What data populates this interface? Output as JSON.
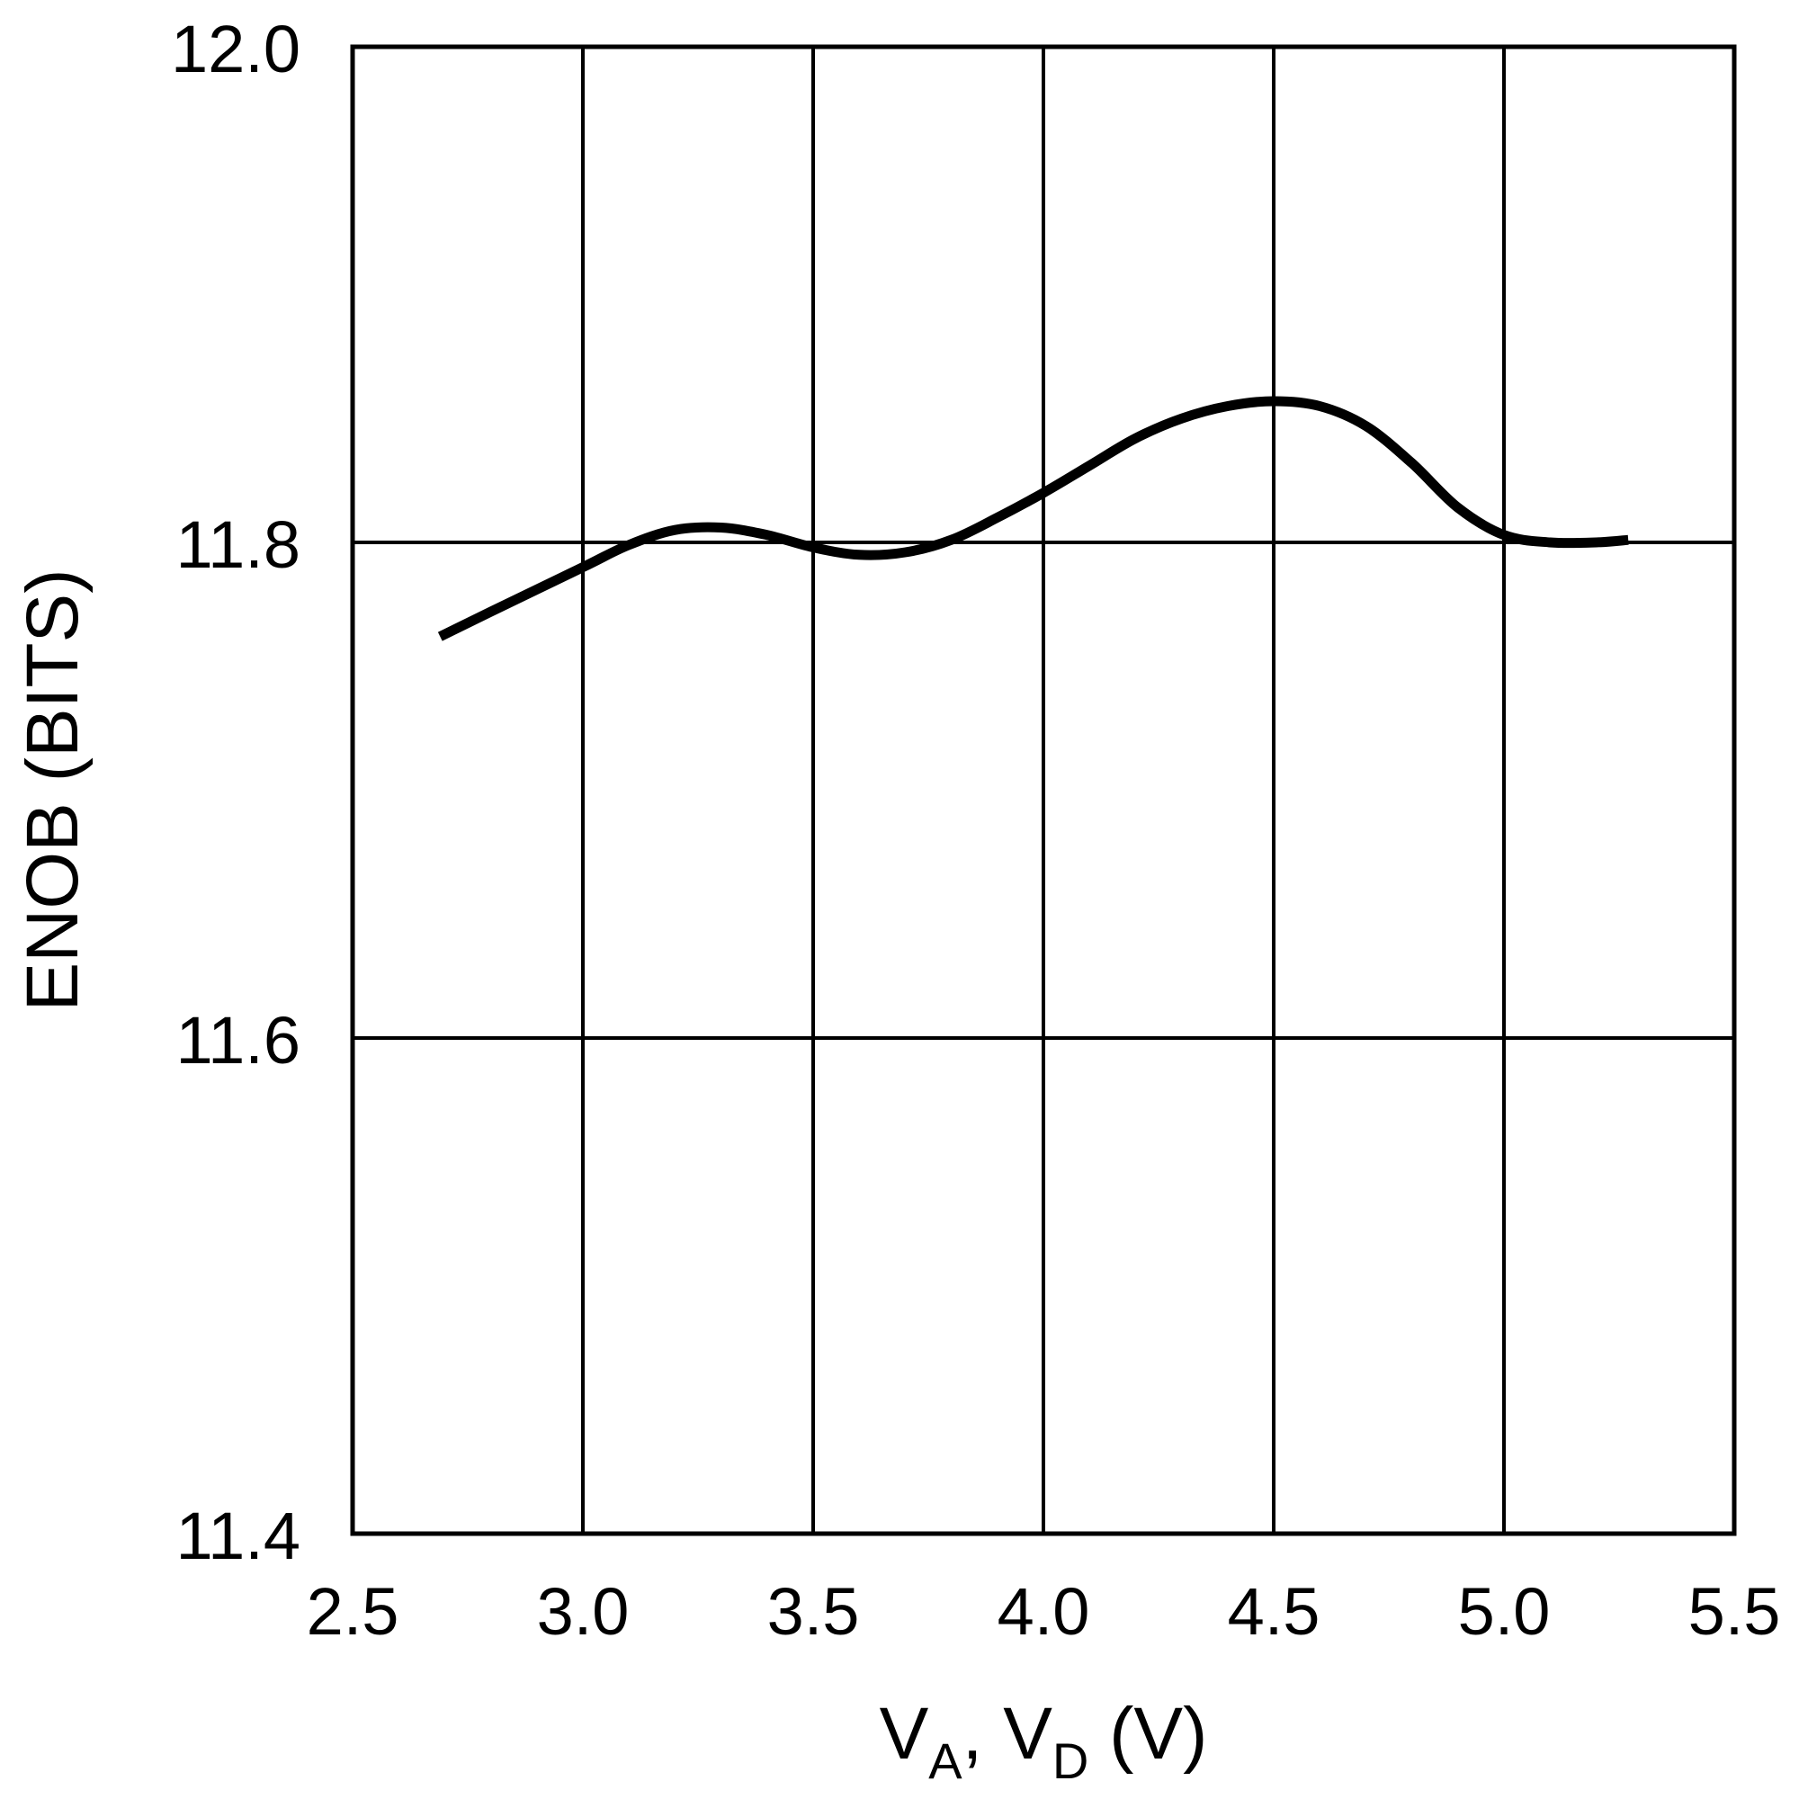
{
  "chart_data": {
    "type": "line",
    "xlabel": {
      "parts": [
        {
          "text": "V",
          "sub": false
        },
        {
          "text": "A",
          "sub": true
        },
        {
          "text": ", V",
          "sub": false
        },
        {
          "text": "D",
          "sub": true
        },
        {
          "text": " (V)",
          "sub": false
        }
      ]
    },
    "ylabel": "ENOB (BITS)",
    "xlim": [
      2.5,
      5.5
    ],
    "ylim": [
      11.4,
      12.0
    ],
    "x_ticks": [
      2.5,
      3.0,
      3.5,
      4.0,
      4.5,
      5.0,
      5.5
    ],
    "x_tick_labels": [
      "2.5",
      "3.0",
      "3.5",
      "4.0",
      "4.5",
      "5.0",
      "5.5"
    ],
    "y_ticks": [
      11.4,
      11.6,
      11.8,
      12.0
    ],
    "y_tick_labels": [
      "11.4",
      "11.6",
      "11.8",
      "12.0"
    ],
    "grid": true,
    "series": [
      {
        "color": "#000000",
        "x": [
          2.69,
          2.8,
          3.0,
          3.1,
          3.2,
          3.3,
          3.4,
          3.5,
          3.6,
          3.7,
          3.8,
          3.9,
          4.0,
          4.1,
          4.2,
          4.3,
          4.4,
          4.5,
          4.6,
          4.7,
          4.8,
          4.9,
          5.0,
          5.1,
          5.2,
          5.27
        ],
        "y": [
          11.762,
          11.772,
          11.79,
          11.799,
          11.805,
          11.806,
          11.803,
          11.798,
          11.795,
          11.796,
          11.801,
          11.81,
          11.82,
          11.831,
          11.842,
          11.85,
          11.855,
          11.857,
          11.855,
          11.847,
          11.832,
          11.814,
          11.803,
          11.8,
          11.8,
          11.801
        ]
      }
    ]
  }
}
